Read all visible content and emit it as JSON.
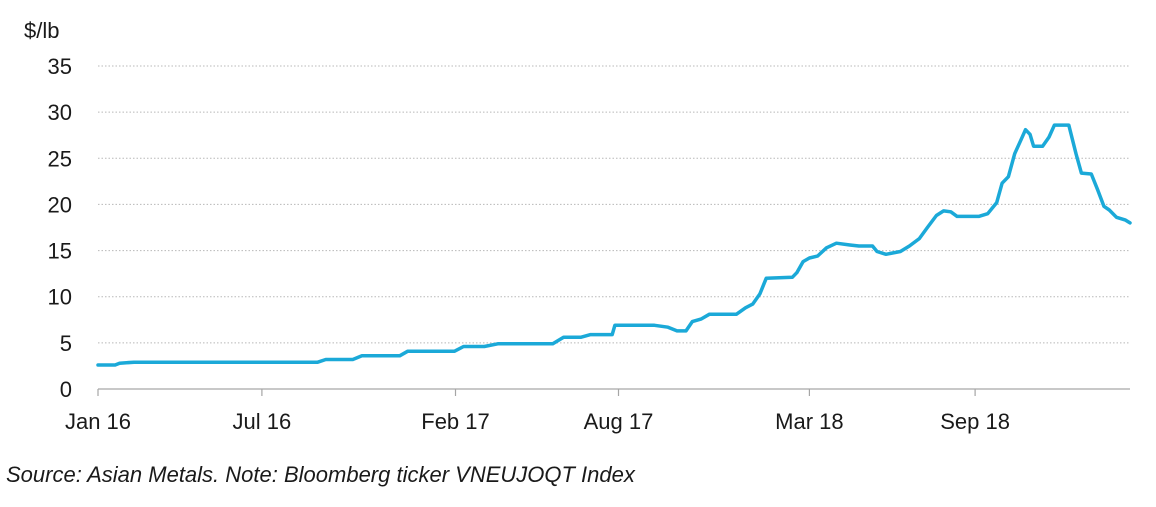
{
  "chart_data": {
    "type": "line",
    "ylabel": "$/lb",
    "ylim": [
      0,
      35
    ],
    "yticks": [
      0,
      5,
      10,
      15,
      20,
      25,
      30,
      35
    ],
    "ytick_labels": [
      "0",
      "5",
      "10",
      "15",
      "20",
      "25",
      "30",
      "35"
    ],
    "xlim": [
      "2016-01-01",
      "2019-02-20"
    ],
    "xticks": [
      {
        "label": "Jan 16",
        "date": "2016-01-01"
      },
      {
        "label": "Jul 16",
        "date": "2016-07-01"
      },
      {
        "label": "Feb 17",
        "date": "2017-02-01"
      },
      {
        "label": "Aug 17",
        "date": "2017-08-01"
      },
      {
        "label": "Mar 18",
        "date": "2018-03-01"
      },
      {
        "label": "Sep 18",
        "date": "2018-09-01"
      }
    ],
    "grid": "horizontal-dotted",
    "line_color": "#1ba9d8",
    "series": [
      {
        "points": [
          [
            "2016-01-01",
            2.6
          ],
          [
            "2016-01-20",
            2.6
          ],
          [
            "2016-01-25",
            2.8
          ],
          [
            "2016-02-10",
            2.9
          ],
          [
            "2016-09-01",
            2.9
          ],
          [
            "2016-09-10",
            3.2
          ],
          [
            "2016-10-10",
            3.2
          ],
          [
            "2016-10-20",
            3.6
          ],
          [
            "2016-12-01",
            3.6
          ],
          [
            "2016-12-10",
            4.1
          ],
          [
            "2017-01-31",
            4.1
          ],
          [
            "2017-02-10",
            4.6
          ],
          [
            "2017-03-05",
            4.6
          ],
          [
            "2017-03-20",
            4.9
          ],
          [
            "2017-05-20",
            4.9
          ],
          [
            "2017-06-01",
            5.6
          ],
          [
            "2017-06-20",
            5.6
          ],
          [
            "2017-07-01",
            5.9
          ],
          [
            "2017-07-25",
            5.9
          ],
          [
            "2017-07-28",
            6.9
          ],
          [
            "2017-09-10",
            6.9
          ],
          [
            "2017-09-25",
            6.7
          ],
          [
            "2017-10-05",
            6.3
          ],
          [
            "2017-10-15",
            6.3
          ],
          [
            "2017-10-22",
            7.3
          ],
          [
            "2017-11-01",
            7.6
          ],
          [
            "2017-11-10",
            8.1
          ],
          [
            "2017-12-10",
            8.1
          ],
          [
            "2017-12-20",
            8.8
          ],
          [
            "2017-12-28",
            9.2
          ],
          [
            "2018-01-05",
            10.3
          ],
          [
            "2018-01-12",
            12.0
          ],
          [
            "2018-02-10",
            12.1
          ],
          [
            "2018-02-15",
            12.6
          ],
          [
            "2018-02-22",
            13.8
          ],
          [
            "2018-03-01",
            14.2
          ],
          [
            "2018-03-10",
            14.4
          ],
          [
            "2018-03-20",
            15.3
          ],
          [
            "2018-03-31",
            15.8
          ],
          [
            "2018-04-15",
            15.6
          ],
          [
            "2018-04-25",
            15.5
          ],
          [
            "2018-05-10",
            15.5
          ],
          [
            "2018-05-15",
            14.9
          ],
          [
            "2018-05-25",
            14.6
          ],
          [
            "2018-06-10",
            14.9
          ],
          [
            "2018-06-20",
            15.5
          ],
          [
            "2018-07-01",
            16.3
          ],
          [
            "2018-07-10",
            17.5
          ],
          [
            "2018-07-20",
            18.8
          ],
          [
            "2018-07-28",
            19.3
          ],
          [
            "2018-08-05",
            19.2
          ],
          [
            "2018-08-12",
            18.7
          ],
          [
            "2018-09-05",
            18.7
          ],
          [
            "2018-09-15",
            19.0
          ],
          [
            "2018-09-25",
            20.2
          ],
          [
            "2018-10-01",
            22.3
          ],
          [
            "2018-10-08",
            23.0
          ],
          [
            "2018-10-15",
            25.5
          ],
          [
            "2018-10-22",
            27.0
          ],
          [
            "2018-10-27",
            28.1
          ],
          [
            "2018-11-01",
            27.6
          ],
          [
            "2018-11-05",
            26.3
          ],
          [
            "2018-11-15",
            26.3
          ],
          [
            "2018-11-22",
            27.3
          ],
          [
            "2018-11-28",
            28.6
          ],
          [
            "2018-12-14",
            28.6
          ],
          [
            "2018-12-22",
            25.5
          ],
          [
            "2018-12-28",
            23.4
          ],
          [
            "2019-01-08",
            23.3
          ],
          [
            "2019-01-15",
            21.6
          ],
          [
            "2019-01-22",
            19.8
          ],
          [
            "2019-01-28",
            19.4
          ],
          [
            "2019-02-05",
            18.6
          ],
          [
            "2019-02-15",
            18.3
          ],
          [
            "2019-02-20",
            18.0
          ]
        ]
      }
    ]
  },
  "source_note": "Source: Asian Metals. Note: Bloomberg ticker VNEUJOQT Index"
}
